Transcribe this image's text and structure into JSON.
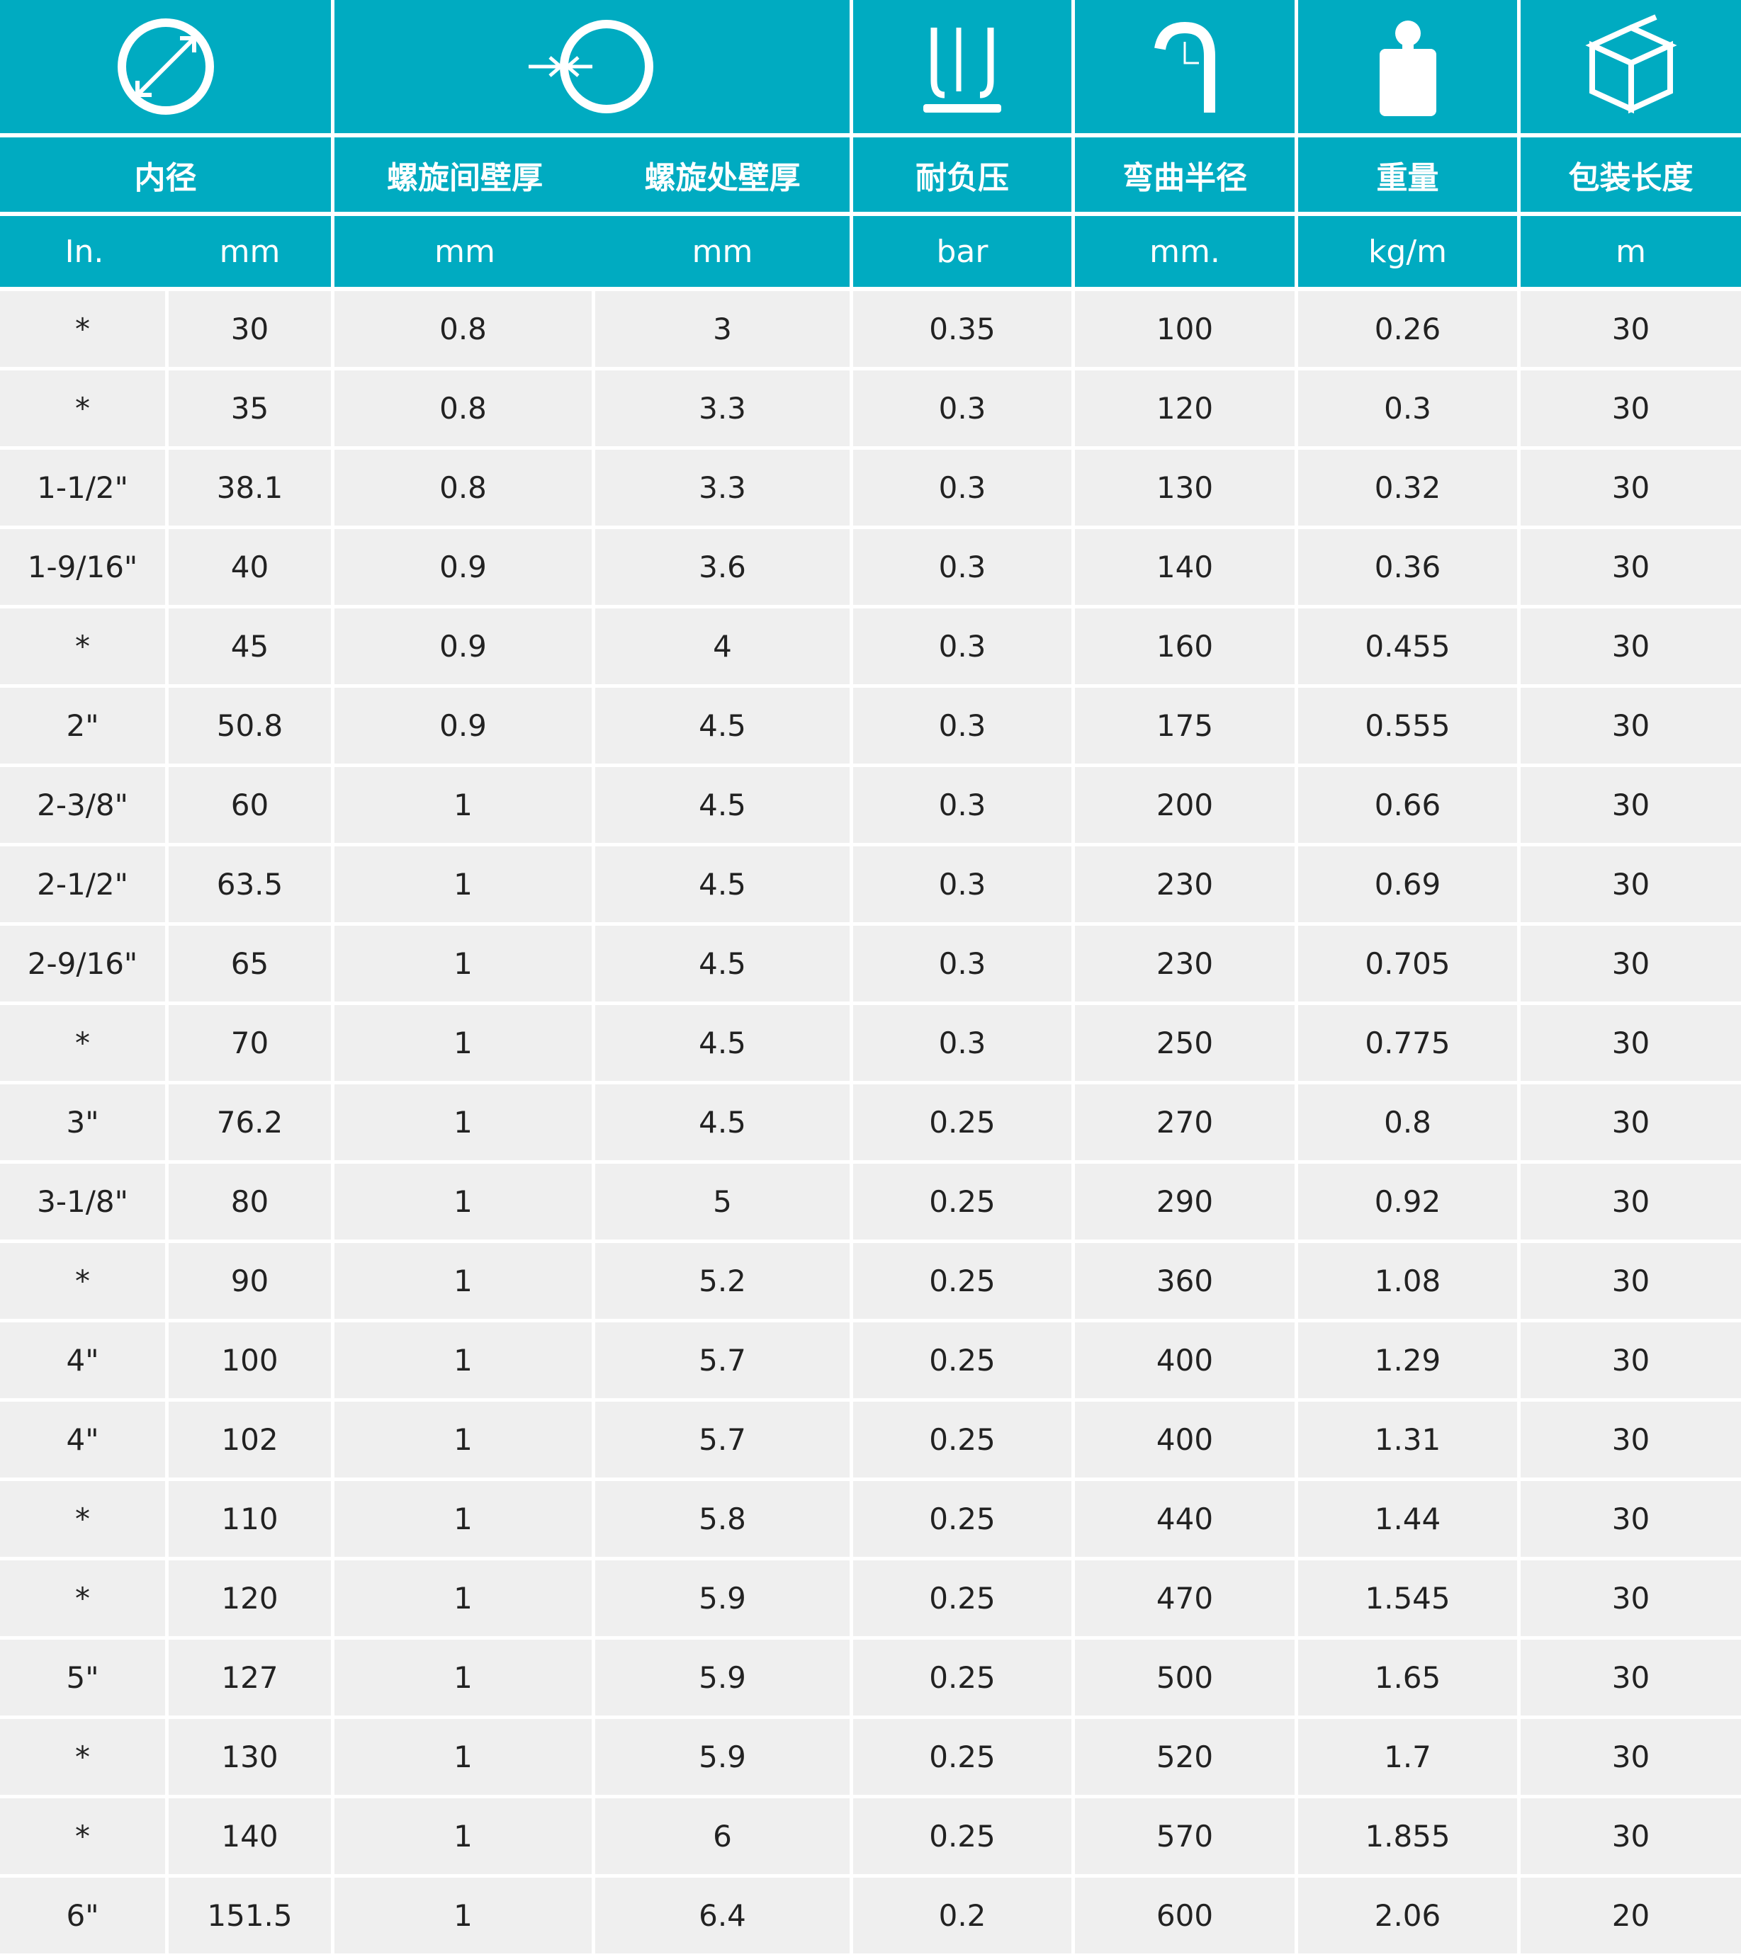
{
  "colors": {
    "header": "#00abc1",
    "row": "#efefef",
    "text": "#222222"
  },
  "icons": [
    "diameter-icon",
    "wall-thickness-icon",
    "pressure-icon",
    "bend-radius-icon",
    "weight-icon",
    "package-icon"
  ],
  "headers": {
    "inner_diameter": "内径",
    "wall_between": "螺旋间壁厚",
    "wall_at": "螺旋处壁厚",
    "pressure": "耐负压",
    "bend_radius": "弯曲半径",
    "weight": "重量",
    "length": "包装长度"
  },
  "units": [
    "In.",
    "mm",
    "mm",
    "mm",
    "bar",
    "mm.",
    "kg/m",
    "m"
  ],
  "rows": [
    [
      "*",
      "30",
      "0.8",
      "3",
      "0.35",
      "100",
      "0.26",
      "30"
    ],
    [
      "*",
      "35",
      "0.8",
      "3.3",
      "0.3",
      "120",
      "0.3",
      "30"
    ],
    [
      "1-1/2\"",
      "38.1",
      "0.8",
      "3.3",
      "0.3",
      "130",
      "0.32",
      "30"
    ],
    [
      "1-9/16\"",
      "40",
      "0.9",
      "3.6",
      "0.3",
      "140",
      "0.36",
      "30"
    ],
    [
      "*",
      "45",
      "0.9",
      "4",
      "0.3",
      "160",
      "0.455",
      "30"
    ],
    [
      "2\"",
      "50.8",
      "0.9",
      "4.5",
      "0.3",
      "175",
      "0.555",
      "30"
    ],
    [
      "2-3/8\"",
      "60",
      "1",
      "4.5",
      "0.3",
      "200",
      "0.66",
      "30"
    ],
    [
      "2-1/2\"",
      "63.5",
      "1",
      "4.5",
      "0.3",
      "230",
      "0.69",
      "30"
    ],
    [
      "2-9/16\"",
      "65",
      "1",
      "4.5",
      "0.3",
      "230",
      "0.705",
      "30"
    ],
    [
      "*",
      "70",
      "1",
      "4.5",
      "0.3",
      "250",
      "0.775",
      "30"
    ],
    [
      "3\"",
      "76.2",
      "1",
      "4.5",
      "0.25",
      "270",
      "0.8",
      "30"
    ],
    [
      "3-1/8\"",
      "80",
      "1",
      "5",
      "0.25",
      "290",
      "0.92",
      "30"
    ],
    [
      "*",
      "90",
      "1",
      "5.2",
      "0.25",
      "360",
      "1.08",
      "30"
    ],
    [
      "4\"",
      "100",
      "1",
      "5.7",
      "0.25",
      "400",
      "1.29",
      "30"
    ],
    [
      "4\"",
      "102",
      "1",
      "5.7",
      "0.25",
      "400",
      "1.31",
      "30"
    ],
    [
      "*",
      "110",
      "1",
      "5.8",
      "0.25",
      "440",
      "1.44",
      "30"
    ],
    [
      "*",
      "120",
      "1",
      "5.9",
      "0.25",
      "470",
      "1.545",
      "30"
    ],
    [
      "5\"",
      "127",
      "1",
      "5.9",
      "0.25",
      "500",
      "1.65",
      "30"
    ],
    [
      "*",
      "130",
      "1",
      "5.9",
      "0.25",
      "520",
      "1.7",
      "30"
    ],
    [
      "*",
      "140",
      "1",
      "6",
      "0.25",
      "570",
      "1.855",
      "30"
    ],
    [
      "6\"",
      "151.5",
      "1",
      "6.4",
      "0.2",
      "600",
      "2.06",
      "20"
    ]
  ]
}
